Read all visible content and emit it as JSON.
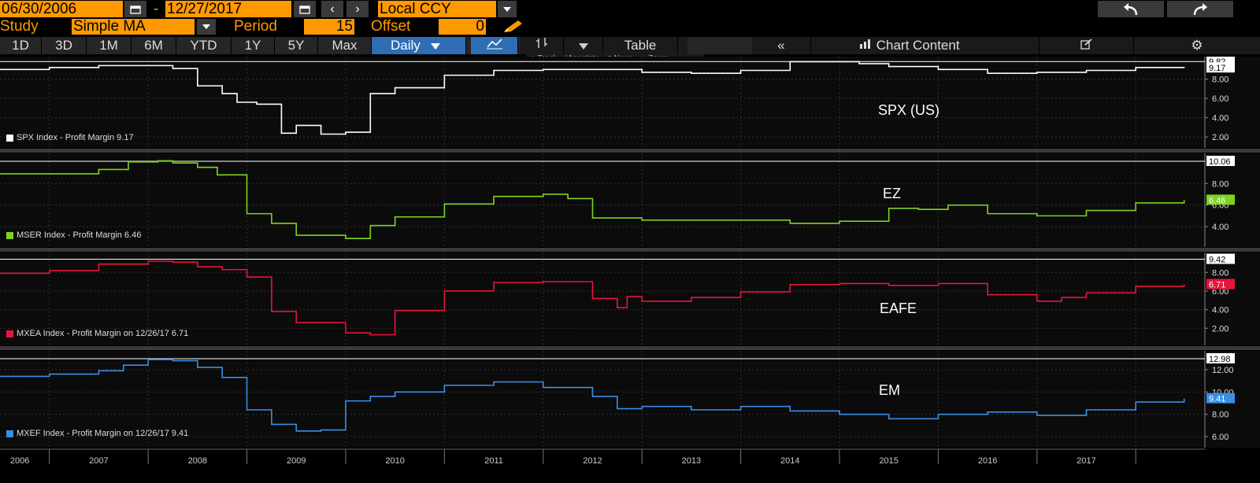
{
  "header": {
    "start_date": "06/30/2006",
    "end_date": "12/27/2017",
    "date_dash": "-",
    "currency": "Local CCY",
    "study_label": "Study",
    "study_value": "Simple MA",
    "period_label": "Period",
    "period_value": "15",
    "offset_label": "Offset",
    "offset_value": "0"
  },
  "toolbar": {
    "ranges": [
      "1D",
      "3D",
      "1M",
      "6M",
      "YTD",
      "1Y",
      "5Y",
      "Max"
    ],
    "frequency": "Daily",
    "table_label": "Table",
    "chart_content_label": "Chart Content"
  },
  "hover_tools": [
    "Track",
    "Annotate",
    "News",
    "Zoom"
  ],
  "colors": {
    "spx": "#ffffff",
    "ez": "#7ed321",
    "eafe": "#e8143c",
    "em": "#3a8ee6",
    "accent": "#ff9900"
  },
  "chart_data": [
    {
      "type": "line",
      "title": "SPX (US)",
      "legend": "SPX Index - Profit Margin 9.17",
      "last_value": "9.17",
      "max_label": "9.82",
      "ylim": [
        1.2,
        10.0
      ],
      "yticks": [
        "2.00",
        "4.00",
        "6.00",
        "8.00"
      ],
      "series": [
        {
          "x": [
            2006.0,
            2006.5,
            2007.0,
            2007.6,
            2007.75,
            2008.0,
            2008.25,
            2008.4,
            2008.6,
            2008.85,
            2009.0,
            2009.25,
            2009.5,
            2009.75,
            2010.0,
            2010.5,
            2011.0,
            2011.5,
            2012.0,
            2012.5,
            2013.0,
            2013.5,
            2014.0,
            2014.4,
            2014.7,
            2015.0,
            2015.5,
            2016.0,
            2016.5,
            2017.0,
            2017.5,
            2017.99
          ],
          "y": [
            9.0,
            9.2,
            9.4,
            9.4,
            9.1,
            7.3,
            6.5,
            5.6,
            5.4,
            2.4,
            3.2,
            2.3,
            2.5,
            6.5,
            7.1,
            8.4,
            8.9,
            9.0,
            9.0,
            8.7,
            8.6,
            8.9,
            9.8,
            9.8,
            9.6,
            9.3,
            9.0,
            8.6,
            8.7,
            8.9,
            9.2,
            9.17
          ]
        }
      ]
    },
    {
      "type": "line",
      "title": "EZ",
      "legend": "MSER Index - Profit Margin 6.46",
      "last_value": "6.46",
      "max_label": "10.06",
      "ylim": [
        2.4,
        10.5
      ],
      "yticks": [
        "4.00",
        "6.00",
        "8.00"
      ],
      "series": [
        {
          "x": [
            2006.0,
            2006.5,
            2007.0,
            2007.3,
            2007.6,
            2007.75,
            2008.0,
            2008.2,
            2008.5,
            2008.75,
            2009.0,
            2009.5,
            2009.75,
            2010.0,
            2010.5,
            2011.0,
            2011.5,
            2011.75,
            2012.0,
            2012.5,
            2013.0,
            2013.5,
            2014.0,
            2014.5,
            2015.0,
            2015.3,
            2015.6,
            2016.0,
            2016.5,
            2017.0,
            2017.5,
            2017.99
          ],
          "y": [
            8.9,
            8.9,
            9.3,
            10.0,
            10.1,
            9.9,
            9.5,
            8.8,
            5.2,
            4.3,
            3.2,
            2.9,
            4.1,
            4.9,
            6.1,
            6.8,
            7.0,
            6.6,
            4.8,
            4.6,
            4.6,
            4.6,
            4.3,
            4.5,
            5.7,
            5.6,
            6.0,
            5.2,
            5.0,
            5.5,
            6.2,
            6.46
          ]
        }
      ]
    },
    {
      "type": "line",
      "title": "EAFE",
      "legend": "MXEA Index - Profit Margin on 12/26/17 6.71",
      "last_value": "6.71",
      "max_label": "9.42",
      "ylim": [
        0.5,
        9.8
      ],
      "yticks": [
        "2.00",
        "4.00",
        "6.00",
        "8.00"
      ],
      "series": [
        {
          "x": [
            2006.0,
            2006.5,
            2007.0,
            2007.5,
            2007.75,
            2008.0,
            2008.25,
            2008.5,
            2008.75,
            2009.0,
            2009.5,
            2009.75,
            2010.0,
            2010.5,
            2011.0,
            2011.5,
            2012.0,
            2012.25,
            2012.35,
            2012.5,
            2013.0,
            2013.5,
            2014.0,
            2014.5,
            2015.0,
            2015.5,
            2016.0,
            2016.5,
            2016.75,
            2017.0,
            2017.5,
            2017.99
          ],
          "y": [
            7.9,
            8.2,
            8.9,
            9.2,
            9.1,
            8.6,
            8.3,
            7.5,
            3.8,
            2.6,
            1.5,
            1.3,
            3.9,
            6.0,
            6.9,
            7.0,
            5.2,
            4.2,
            5.4,
            4.9,
            5.3,
            5.9,
            6.7,
            6.8,
            6.6,
            6.8,
            5.6,
            4.9,
            5.3,
            5.8,
            6.5,
            6.71
          ]
        }
      ]
    },
    {
      "type": "line",
      "title": "EM",
      "legend": "MXEF Index - Profit Margin on 12/26/17 9.41",
      "last_value": "9.41",
      "max_label": "12.98",
      "ylim": [
        5.3,
        13.4
      ],
      "yticks": [
        "6.00",
        "8.00",
        "10.00",
        "12.00"
      ],
      "series": [
        {
          "x": [
            2006.0,
            2006.5,
            2007.0,
            2007.25,
            2007.5,
            2007.75,
            2008.0,
            2008.25,
            2008.5,
            2008.75,
            2009.0,
            2009.25,
            2009.5,
            2009.75,
            2010.0,
            2010.5,
            2011.0,
            2011.5,
            2012.0,
            2012.25,
            2012.5,
            2013.0,
            2013.5,
            2014.0,
            2014.5,
            2015.0,
            2015.5,
            2016.0,
            2016.5,
            2017.0,
            2017.5,
            2017.99
          ],
          "y": [
            11.4,
            11.6,
            11.9,
            12.4,
            12.9,
            12.8,
            12.2,
            11.3,
            8.4,
            7.1,
            6.5,
            6.6,
            9.2,
            9.6,
            10.0,
            10.6,
            10.9,
            10.4,
            9.6,
            8.5,
            8.7,
            8.4,
            8.7,
            8.3,
            8.0,
            7.6,
            8.0,
            8.2,
            7.9,
            8.4,
            9.1,
            9.41
          ]
        }
      ]
    }
  ],
  "x_axis": {
    "years": [
      "2006",
      "2007",
      "2008",
      "2009",
      "2010",
      "2011",
      "2012",
      "2013",
      "2014",
      "2015",
      "2016",
      "2017"
    ]
  }
}
